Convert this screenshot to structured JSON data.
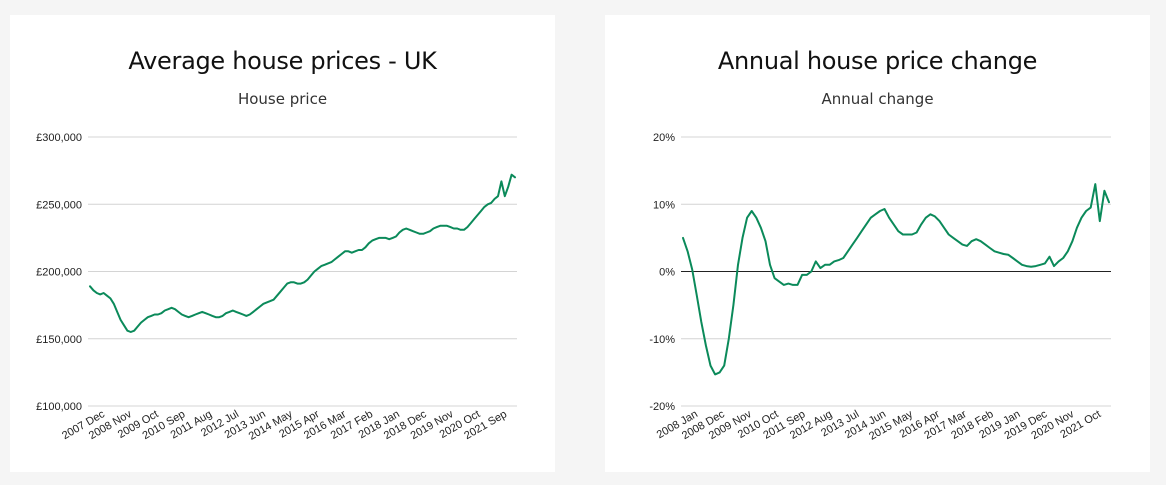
{
  "chart_data": [
    {
      "type": "line",
      "title": "Average house prices - UK",
      "subtitle": "House price",
      "xlabel": "",
      "ylabel": "",
      "ylim": [
        100000,
        300000
      ],
      "y_ticks": [
        100000,
        150000,
        200000,
        250000,
        300000
      ],
      "y_tick_labels": [
        "£100,000",
        "£150,000",
        "£200,000",
        "£250,000",
        "£300,000"
      ],
      "x_tick_labels": [
        "2007 Dec",
        "2008 Nov",
        "2009 Oct",
        "2010 Sep",
        "2011 Aug",
        "2012 Jul",
        "2013 Jun",
        "2014 May",
        "2015 Apr",
        "2016 Mar",
        "2017 Feb",
        "2018 Jan",
        "2018 Dec",
        "2019 Nov",
        "2020 Oct",
        "2021 Sep"
      ],
      "grid": true,
      "color": "#0b8a5a",
      "series": [
        {
          "values": [
            189000,
            186000,
            184000,
            183000,
            184000,
            182000,
            180000,
            176000,
            170000,
            164000,
            160000,
            156000,
            155000,
            156000,
            159000,
            162000,
            164000,
            166000,
            167000,
            168000,
            168000,
            169000,
            171000,
            172000,
            173000,
            172000,
            170000,
            168000,
            167000,
            166000,
            167000,
            168000,
            169000,
            170000,
            169000,
            168000,
            167000,
            166000,
            166000,
            167000,
            169000,
            170000,
            171000,
            170000,
            169000,
            168000,
            167000,
            168000,
            170000,
            172000,
            174000,
            176000,
            177000,
            178000,
            179000,
            182000,
            185000,
            188000,
            191000,
            192000,
            192000,
            191000,
            191000,
            192000,
            194000,
            197000,
            200000,
            202000,
            204000,
            205000,
            206000,
            207000,
            209000,
            211000,
            213000,
            215000,
            215000,
            214000,
            215000,
            216000,
            216000,
            218000,
            221000,
            223000,
            224000,
            225000,
            225000,
            225000,
            224000,
            225000,
            226000,
            229000,
            231000,
            232000,
            231000,
            230000,
            229000,
            228000,
            228000,
            229000,
            230000,
            232000,
            233000,
            234000,
            234000,
            234000,
            233000,
            232000,
            232000,
            231000,
            231000,
            233000,
            236000,
            239000,
            242000,
            245000,
            248000,
            250000,
            251000,
            254000,
            256000,
            267000,
            256000,
            263000,
            272000,
            270000
          ]
        }
      ]
    },
    {
      "type": "line",
      "title": "Annual house price change",
      "subtitle": "Annual change",
      "xlabel": "",
      "ylabel": "",
      "ylim": [
        -20,
        20
      ],
      "y_ticks": [
        -20,
        -10,
        0,
        10,
        20
      ],
      "y_tick_labels": [
        "-20%",
        "-10%",
        "0%",
        "10%",
        "20%"
      ],
      "x_tick_labels": [
        "2008 Jan",
        "2008 Dec",
        "2009 Nov",
        "2010 Oct",
        "2011 Sep",
        "2012 Aug",
        "2013 Jul",
        "2014 Jun",
        "2015 May",
        "2016 Apr",
        "2017 Mar",
        "2018 Feb",
        "2019 Jan",
        "2019 Dec",
        "2020 Nov",
        "2021 Oct"
      ],
      "grid": true,
      "color": "#0b8a5a",
      "series": [
        {
          "values": [
            5.0,
            3.0,
            0.3,
            -3.5,
            -7.5,
            -11.0,
            -14.0,
            -15.3,
            -15.0,
            -14.0,
            -10.0,
            -5.0,
            1.0,
            5.0,
            8.0,
            9.0,
            8.0,
            6.5,
            4.5,
            1.0,
            -1.0,
            -1.5,
            -2.0,
            -1.8,
            -2.0,
            -2.0,
            -0.5,
            -0.5,
            0.0,
            1.5,
            0.5,
            1.0,
            1.0,
            1.5,
            1.7,
            2.0,
            3.0,
            4.0,
            5.0,
            6.0,
            7.0,
            8.0,
            8.5,
            9.0,
            9.3,
            8.0,
            7.0,
            6.0,
            5.5,
            5.5,
            5.5,
            5.8,
            7.0,
            8.0,
            8.5,
            8.2,
            7.5,
            6.5,
            5.5,
            5.0,
            4.5,
            4.0,
            3.8,
            4.5,
            4.8,
            4.5,
            4.0,
            3.5,
            3.0,
            2.8,
            2.6,
            2.5,
            2.0,
            1.5,
            1.0,
            0.8,
            0.7,
            0.8,
            1.0,
            1.2,
            2.2,
            0.8,
            1.5,
            2.0,
            3.0,
            4.5,
            6.5,
            8.0,
            9.0,
            9.5,
            13.0,
            7.5,
            12.0,
            10.3
          ]
        }
      ]
    }
  ]
}
